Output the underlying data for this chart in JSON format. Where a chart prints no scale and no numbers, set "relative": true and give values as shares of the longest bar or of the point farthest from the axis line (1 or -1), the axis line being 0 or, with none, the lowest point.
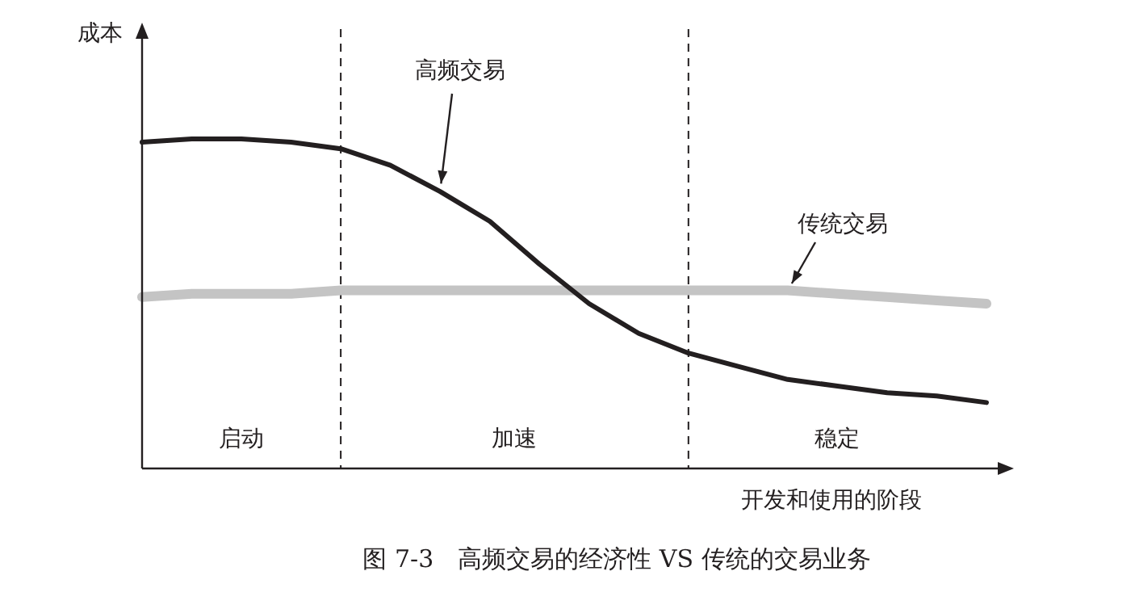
{
  "chart_data": {
    "type": "line",
    "relative": true,
    "xlabel": "开发和使用的阶段",
    "ylabel": "成本",
    "categories": [
      null,
      null,
      null,
      null,
      null,
      null,
      null,
      null,
      null,
      null,
      null,
      null,
      null,
      null,
      null,
      null,
      null,
      null
    ],
    "series": [
      {
        "name": "高频交易",
        "color": "#231f20",
        "values": [
          0.99,
          1.0,
          1.0,
          0.99,
          0.97,
          0.92,
          0.84,
          0.75,
          0.62,
          0.5,
          0.41,
          0.35,
          0.31,
          0.27,
          0.25,
          0.23,
          0.22,
          0.2
        ]
      },
      {
        "name": "传统交易",
        "color": "#c4c4c4",
        "values": [
          0.52,
          0.53,
          0.53,
          0.53,
          0.54,
          0.54,
          0.54,
          0.54,
          0.54,
          0.54,
          0.54,
          0.54,
          0.54,
          0.54,
          0.53,
          0.52,
          0.51,
          0.5
        ]
      }
    ],
    "annotations": [
      "启动",
      "加速",
      "稳定",
      "图 7-3　高频交易的经济性 VS 传统的交易业务"
    ]
  }
}
